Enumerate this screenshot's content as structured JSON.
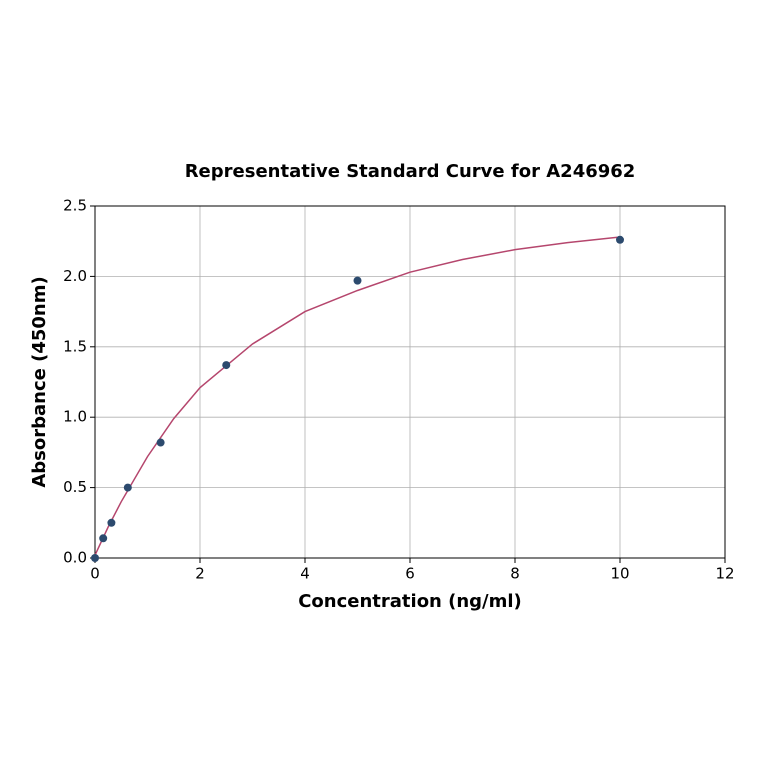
{
  "chart_data": {
    "type": "scatter",
    "title": "Representative Standard Curve for A246962",
    "x_label": "Concentration (ng/ml)",
    "y_label": "Absorbance (450nm)",
    "points": {
      "color": "#2c4a6e",
      "x": [
        0,
        0.156,
        0.3125,
        0.625,
        1.25,
        2.5,
        5,
        10
      ],
      "values": [
        0,
        0.14,
        0.25,
        0.5,
        0.82,
        1.37,
        1.97,
        2.26
      ]
    },
    "curve": {
      "color": "#b5466d",
      "x": [
        0,
        0.25,
        0.5,
        1,
        1.5,
        2,
        3,
        4,
        5,
        6,
        7,
        8,
        9,
        10
      ],
      "values": [
        0.02,
        0.22,
        0.4,
        0.72,
        0.99,
        1.21,
        1.52,
        1.75,
        1.9,
        2.03,
        2.12,
        2.19,
        2.24,
        2.28
      ]
    },
    "xlim": [
      0,
      12
    ],
    "xticks": [
      0,
      2,
      4,
      6,
      8,
      10,
      12
    ],
    "ylim": [
      0,
      2.5
    ],
    "yticks": [
      {
        "value": 0,
        "label": "0.0"
      },
      0.5,
      {
        "value": 1,
        "label": "1.0"
      },
      1.5,
      {
        "value": 2,
        "label": "2.0"
      },
      2.5
    ],
    "grid": true
  }
}
